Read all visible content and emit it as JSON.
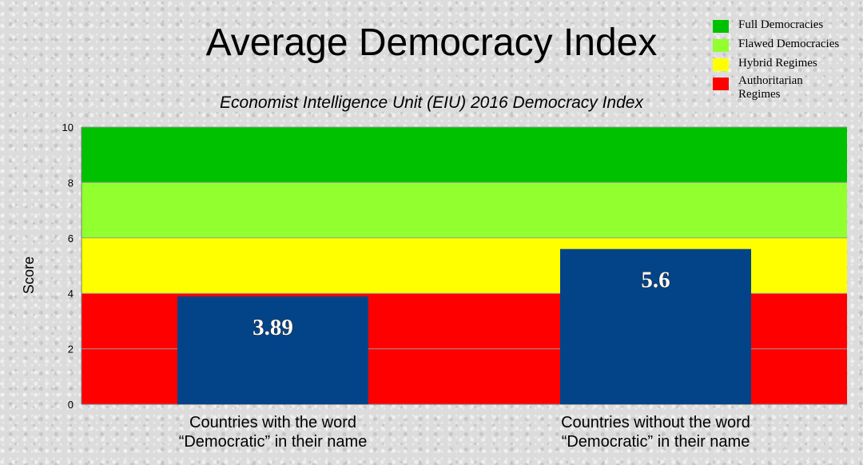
{
  "chart_data": {
    "type": "bar",
    "title": "Average Democracy Index",
    "subtitle": "Economist Intelligence Unit (EIU) 2016 Democracy Index",
    "ylabel": "Score",
    "xlabel": "",
    "ylim": [
      0,
      10
    ],
    "yticks": [
      0,
      2,
      4,
      6,
      8,
      10
    ],
    "categories": [
      [
        "Countries with the word",
        "“Democratic” in their name"
      ],
      [
        "Countries without the word",
        "“Democratic” in their name"
      ]
    ],
    "values": [
      3.89,
      5.6
    ],
    "data_labels": [
      "3.89",
      "5.6"
    ],
    "bar_color": "#034488",
    "bands": [
      {
        "name": "Full Democracies",
        "from": 8,
        "to": 10,
        "color": "#00c100"
      },
      {
        "name": "Flawed Democracies",
        "from": 6,
        "to": 8,
        "color": "#92ff2e"
      },
      {
        "name": "Hybrid Regimes",
        "from": 4,
        "to": 6,
        "color": "#ffff00"
      },
      {
        "name": "Authoritarian Regimes",
        "from": 0,
        "to": 4,
        "color": "#ff0000"
      }
    ],
    "legend_position": "top-right",
    "grid": true
  }
}
